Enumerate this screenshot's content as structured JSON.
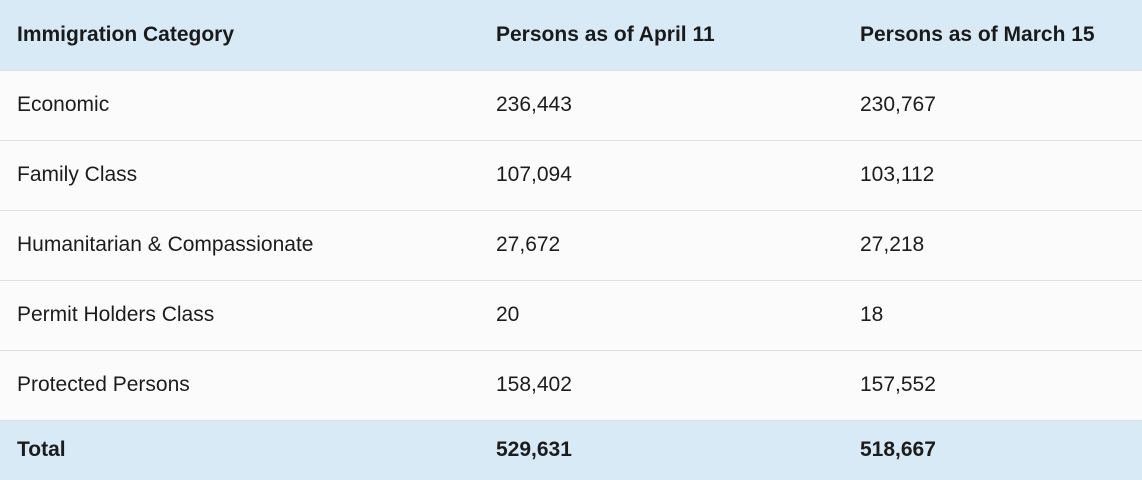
{
  "table": {
    "headers": [
      "Immigration Category",
      "Persons as of April 11",
      "Persons as of March 15"
    ],
    "rows": [
      {
        "category": "Economic",
        "april": "236,443",
        "march": "230,767"
      },
      {
        "category": "Family Class",
        "april": "107,094",
        "march": "103,112"
      },
      {
        "category": "Humanitarian & Compassionate",
        "april": "27,672",
        "march": "27,218"
      },
      {
        "category": "Permit Holders Class",
        "april": "20",
        "march": "18"
      },
      {
        "category": "Protected Persons",
        "april": "158,402",
        "march": "157,552"
      }
    ],
    "total": {
      "category": "Total",
      "april": "529,631",
      "march": "518,667"
    }
  },
  "colors": {
    "header_bg": "#d8eaf6",
    "row_bg": "#fbfbfb",
    "divider": "#dfdfdf"
  }
}
